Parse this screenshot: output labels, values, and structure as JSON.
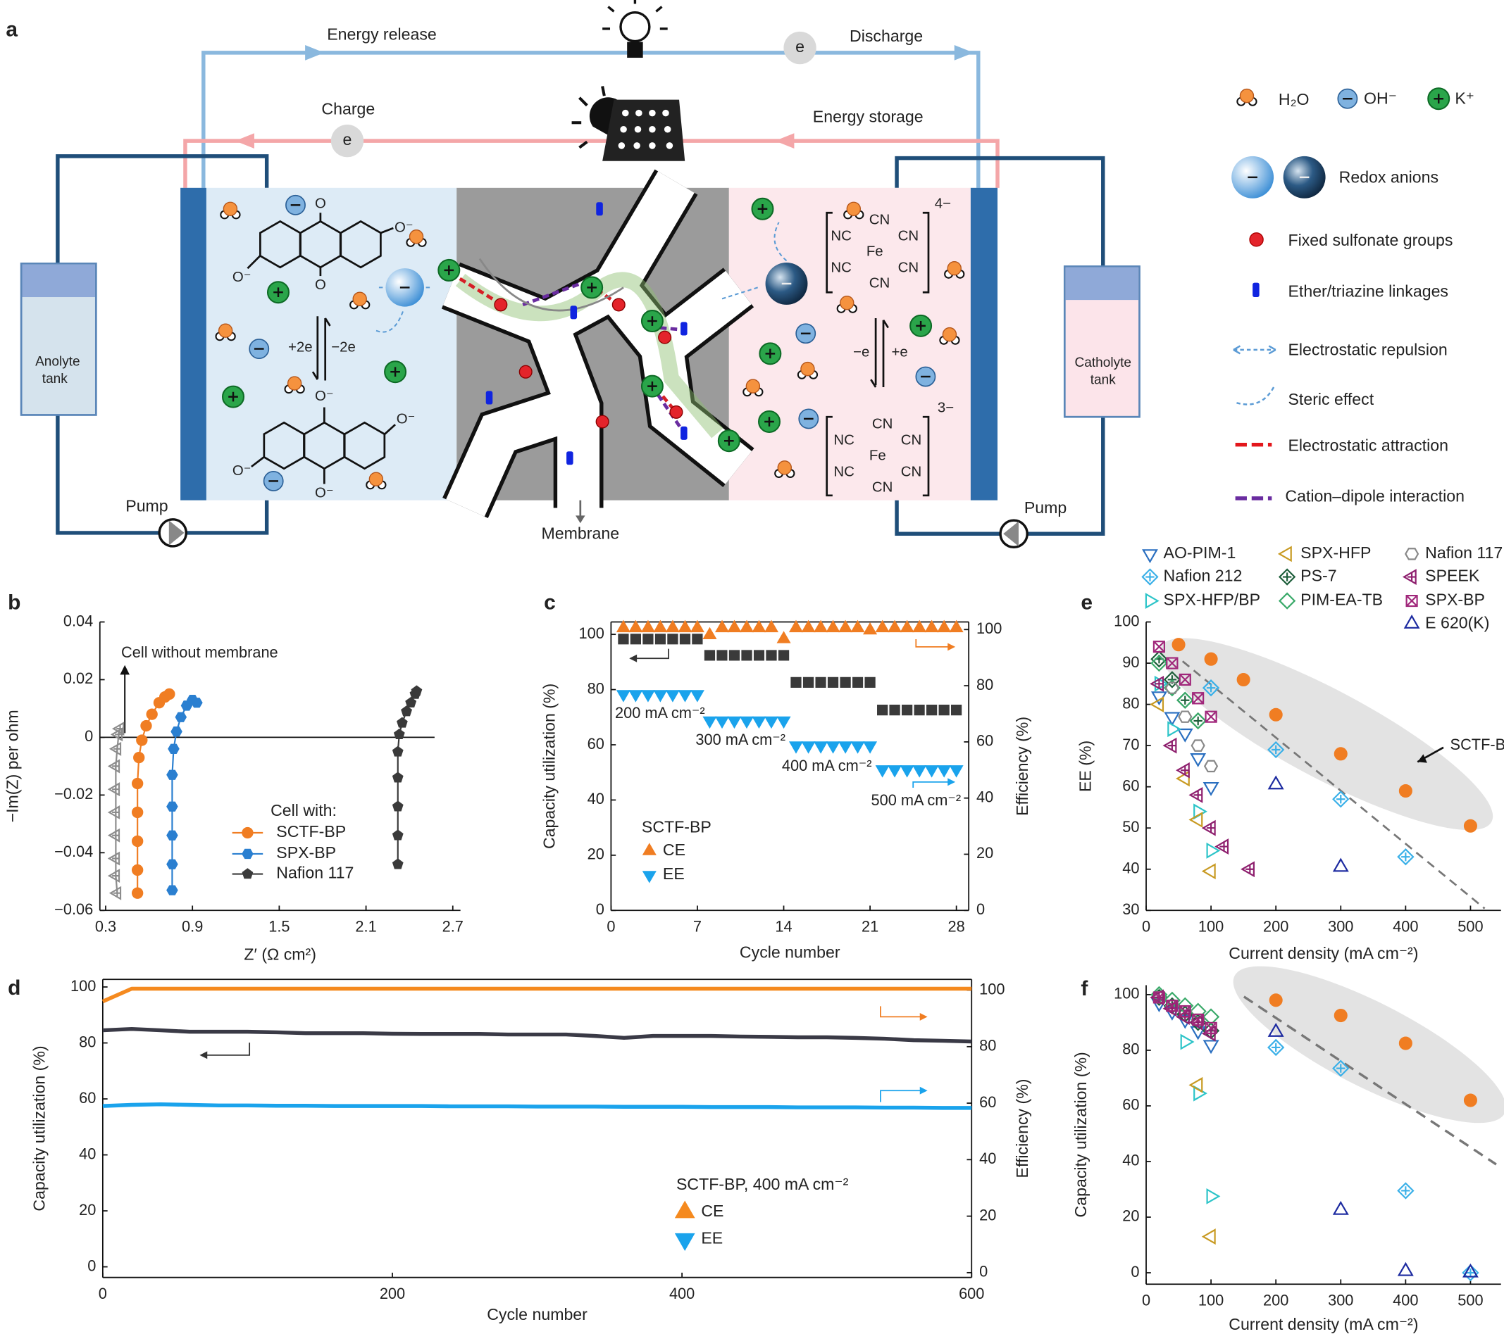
{
  "diagram": {
    "panel": "a",
    "energy_release": "Energy release",
    "discharge": "Discharge",
    "charge": "Charge",
    "energy_storage": "Energy storage",
    "electrons": [
      "e",
      "e"
    ],
    "tank_left": [
      "Anolyte",
      "tank"
    ],
    "tank_right": [
      "Catholyte",
      "tank"
    ],
    "pumps": [
      "Pump",
      "Pump"
    ],
    "membrane": "Membrane",
    "reaction_left": [
      "+2e",
      "−2e"
    ],
    "reaction_right": [
      "−e",
      "+e"
    ],
    "anthraquinone": [
      "O",
      "O⁻",
      "O⁻",
      "O"
    ],
    "reduced": [
      "O⁻",
      "O⁻",
      "O⁻",
      "O⁻"
    ],
    "complex_ox": [
      "CN",
      "NC",
      "CN",
      "Fe",
      "NC",
      "CN",
      "CN",
      "4−"
    ],
    "complex_red": [
      "CN",
      "NC",
      "CN",
      "Fe",
      "NC",
      "CN",
      "CN",
      "3−"
    ],
    "legend": [
      "H₂O",
      "OH⁻",
      "K⁺",
      "Redox anions",
      "Fixed sulfonate groups",
      "Ether/triazine linkages",
      "Electrostatic repulsion",
      "Steric effect",
      "Electrostatic attraction",
      "Cation–dipole interaction"
    ]
  },
  "chart_data": [
    {
      "panel": "b",
      "type": "line",
      "xlabel": "Z′ (Ω cm²)",
      "ylabel": "−Im(Z) per ohm",
      "xlim": [
        0.26,
        2.753
      ],
      "ylim": [
        -0.06,
        0.04
      ],
      "xticks": [
        0.3,
        0.9,
        1.5,
        2.1,
        2.7
      ],
      "yticks": [
        {
          "value": -0.06,
          "label": "−0.06"
        },
        {
          "value": -0.04,
          "label": "−0.04"
        },
        {
          "value": -0.02,
          "label": "−0.02"
        },
        0,
        0.02,
        0.04
      ],
      "legend_title": "Cell with:",
      "annotations": [
        "Cell without membrane"
      ],
      "series": [
        {
          "color": "#8c8c8c",
          "marker": "o-tri-left-plus",
          "x": [
            0.38,
            0.37,
            0.37,
            0.37,
            0.37,
            0.37,
            0.37,
            0.38,
            0.39,
            0.4
          ],
          "values": [
            -0.054,
            -0.048,
            -0.042,
            -0.034,
            -0.026,
            -0.018,
            -0.01,
            -0.004,
            0.001,
            0.003
          ]
        },
        {
          "name": "SCTF-BP",
          "color": "#f07d22",
          "marker": "circle",
          "x": [
            0.52,
            0.52,
            0.52,
            0.52,
            0.52,
            0.53,
            0.55,
            0.58,
            0.62,
            0.67,
            0.71,
            0.74
          ],
          "values": [
            -0.054,
            -0.046,
            -0.036,
            -0.026,
            -0.016,
            -0.007,
            -0.001,
            0.004,
            0.008,
            0.012,
            0.014,
            0.015
          ]
        },
        {
          "name": "SPX-BP",
          "color": "#2a7fd0",
          "marker": "hexagon",
          "x": [
            0.76,
            0.76,
            0.76,
            0.76,
            0.76,
            0.77,
            0.79,
            0.82,
            0.86,
            0.9,
            0.93
          ],
          "values": [
            -0.053,
            -0.044,
            -0.034,
            -0.024,
            -0.013,
            -0.004,
            0.002,
            0.007,
            0.011,
            0.013,
            0.012
          ]
        },
        {
          "name": "Nafion 117",
          "color": "#3a3a3a",
          "marker": "pentagon",
          "x": [
            2.32,
            2.32,
            2.32,
            2.32,
            2.32,
            2.33,
            2.35,
            2.38,
            2.41,
            2.44,
            2.45
          ],
          "values": [
            -0.044,
            -0.034,
            -0.024,
            -0.014,
            -0.005,
            0.001,
            0.005,
            0.009,
            0.012,
            0.015,
            0.016
          ]
        }
      ]
    },
    {
      "panel": "c",
      "type": "scatter",
      "xlabel": "Cycle number",
      "ylabel": "Capacity utilization (%)",
      "y2label": "Efficiency (%)",
      "xlim": [
        0,
        29
      ],
      "xticks": [
        0,
        7,
        14,
        21,
        28
      ],
      "ylim": [
        0,
        104.5
      ],
      "yticks": [
        0,
        20,
        40,
        60,
        80,
        100
      ],
      "y2lim": [
        0,
        102.7
      ],
      "y2ticks": [
        0,
        20,
        40,
        60,
        80,
        100
      ],
      "legend_title": "SCTF-BP",
      "annotations": [
        "200 mA cm⁻²",
        "300 mA cm⁻²",
        "400 mA cm⁻²",
        "500 mA cm⁻²"
      ],
      "x": [
        1,
        2,
        3,
        4,
        5,
        6,
        7,
        8,
        9,
        10,
        11,
        12,
        13,
        14,
        15,
        16,
        17,
        18,
        19,
        20,
        21,
        22,
        23,
        24,
        25,
        26,
        27,
        28
      ],
      "series": [
        {
          "color": "#3a3a3a",
          "marker": "square",
          "values": [
            98.3,
            98.3,
            98.3,
            98.3,
            98.3,
            98.3,
            98.3,
            92.4,
            92.4,
            92.4,
            92.4,
            92.4,
            92.4,
            92.4,
            82.6,
            82.6,
            82.6,
            82.6,
            82.6,
            82.6,
            82.6,
            72.6,
            72.6,
            72.6,
            72.6,
            72.6,
            72.6,
            72.6
          ]
        },
        {
          "name": "CE",
          "axis": "y2",
          "color": "#f07d22",
          "marker": "tri-up",
          "values": [
            100.5,
            100.5,
            100.5,
            100.5,
            100.5,
            100.5,
            100.5,
            98,
            100.5,
            100.5,
            100.5,
            100.5,
            100.5,
            96.6,
            100.5,
            100.5,
            100.5,
            100.5,
            100.5,
            100.5,
            99.7,
            100.5,
            100.5,
            100.5,
            100.5,
            100.5,
            100.5,
            100.5
          ]
        },
        {
          "name": "EE",
          "axis": "y2",
          "color": "#1aa3ec",
          "marker": "tri-down",
          "values": [
            77,
            77,
            77,
            77,
            77,
            77,
            77,
            67.6,
            67.6,
            67.6,
            67.6,
            67.6,
            67.6,
            67.6,
            58.7,
            58.7,
            58.7,
            58.7,
            58.7,
            58.7,
            58.7,
            50.2,
            50.2,
            50.2,
            50.2,
            50.2,
            50.2,
            50.2
          ]
        }
      ]
    },
    {
      "panel": "d",
      "type": "line",
      "xlabel": "Cycle number",
      "ylabel": "Capacity utilization (%)",
      "y2label": "Efficiency (%)",
      "xlim": [
        0,
        600
      ],
      "xticks": [
        0,
        200,
        400,
        600
      ],
      "ylim": [
        -3.8,
        102.7
      ],
      "yticks": [
        0,
        20,
        40,
        60,
        80,
        100
      ],
      "y2lim": [
        -1.7,
        103.8
      ],
      "y2ticks": [
        0,
        20,
        40,
        60,
        80,
        100
      ],
      "legend_title": "SCTF-BP,  400 mA cm⁻²",
      "x": [
        0,
        20,
        40,
        60,
        80,
        100,
        120,
        140,
        160,
        180,
        200,
        220,
        240,
        260,
        280,
        300,
        320,
        340,
        360,
        380,
        400,
        420,
        440,
        460,
        480,
        500,
        520,
        540,
        560,
        580,
        600
      ],
      "series": [
        {
          "color": "#3a3a46",
          "values": [
            84.5,
            85,
            84.5,
            84,
            84,
            84,
            83.8,
            83.5,
            83.5,
            83.5,
            83.3,
            83.2,
            83.2,
            83.2,
            83,
            83,
            83,
            82.5,
            81.8,
            82.5,
            82.5,
            82.5,
            82.3,
            82.2,
            82,
            82,
            81.8,
            81.5,
            81,
            80.8,
            80.5
          ]
        },
        {
          "name": "CE",
          "axis": "y2",
          "color": "#f58a1f",
          "legend_marker": "tri-up",
          "values": [
            96,
            100.5,
            100.5,
            100.5,
            100.5,
            100.5,
            100.5,
            100.5,
            100.5,
            100.5,
            100.5,
            100.5,
            100.5,
            100.5,
            100.5,
            100.5,
            100.5,
            100.5,
            100.5,
            100.5,
            100.5,
            100.5,
            100.5,
            100.5,
            100.5,
            100.5,
            100.5,
            100.5,
            100.5,
            100.5,
            100.5
          ]
        },
        {
          "name": "EE",
          "axis": "y2",
          "color": "#1aa3ec",
          "legend_marker": "tri-down",
          "values": [
            59,
            59.4,
            59.6,
            59.4,
            59.2,
            59.2,
            59.1,
            59.1,
            59,
            59,
            59,
            59,
            58.9,
            58.9,
            58.9,
            58.8,
            58.8,
            58.8,
            58.7,
            58.7,
            58.7,
            58.6,
            58.6,
            58.6,
            58.5,
            58.5,
            58.5,
            58.4,
            58.4,
            58.3,
            58.3
          ]
        }
      ]
    },
    {
      "panel": "e",
      "type": "scatter",
      "xlabel": "Current density (mA cm⁻²)",
      "ylabel": "EE (%)",
      "xlim": [
        0,
        547
      ],
      "xticks": [
        0,
        100,
        200,
        300,
        400,
        500
      ],
      "ylim": [
        30,
        100
      ],
      "yticks": [
        30,
        40,
        50,
        60,
        70,
        80,
        90,
        100
      ],
      "annotations": [
        "SCTF-BP"
      ],
      "series": [
        {
          "name": "AO-PIM-1",
          "color": "#2a6fc0",
          "marker": "o-tri-down",
          "x": [
            20,
            40,
            60,
            80,
            100
          ],
          "values": [
            82,
            77,
            73,
            67,
            60
          ]
        },
        {
          "name": "Nafion 212",
          "color": "#3ab0e8",
          "marker": "o-diamond-plus",
          "x": [
            100,
            200,
            300,
            400
          ],
          "values": [
            84,
            69,
            57,
            43
          ]
        },
        {
          "name": "SPX-HFP/BP",
          "color": "#2cc4c8",
          "marker": "o-tri-right",
          "x": [
            20,
            40,
            80,
            100
          ],
          "values": [
            85,
            74,
            54,
            44.5
          ]
        },
        {
          "name": "SPX-HFP",
          "color": "#c89a22",
          "marker": "o-tri-left",
          "x": [
            20,
            60,
            80,
            100
          ],
          "values": [
            80,
            62,
            52,
            39.5
          ]
        },
        {
          "name": "PS-7",
          "color": "#1d5e3a",
          "marker": "o-diamond-plus",
          "x": [
            20,
            40,
            60,
            80
          ],
          "values": [
            91,
            86,
            81,
            76
          ]
        },
        {
          "name": "PIM-EA-TB",
          "color": "#3aaa6a",
          "marker": "o-diamond",
          "x": [
            20,
            40,
            60,
            80
          ],
          "values": [
            90,
            84,
            81,
            76
          ]
        },
        {
          "name": "Nafion 117",
          "color": "#888888",
          "marker": "o-hexagon",
          "x": [
            40,
            60,
            80,
            100
          ],
          "values": [
            84,
            77,
            70,
            65
          ]
        },
        {
          "name": "SPEEK",
          "color": "#8e1f6e",
          "marker": "o-tri-left-plus",
          "x": [
            20,
            40,
            60,
            80,
            100,
            120,
            160
          ],
          "values": [
            85,
            70,
            64,
            58,
            50,
            45.5,
            40
          ]
        },
        {
          "name": "SPX-BP",
          "color": "#a0267a",
          "marker": "o-square-x",
          "x": [
            20,
            40,
            60,
            80,
            100
          ],
          "values": [
            94,
            90,
            86,
            81.5,
            77
          ]
        },
        {
          "name": "E 620(K)",
          "color": "#1c2aa0",
          "marker": "o-tri-up",
          "x": [
            200,
            300
          ],
          "values": [
            60.5,
            40.5
          ]
        },
        {
          "color": "#f07d22",
          "marker": "circle",
          "x": [
            50,
            100,
            150,
            200,
            300,
            400,
            500
          ],
          "values": [
            94.5,
            91,
            86,
            77.5,
            68,
            59,
            50.5
          ]
        }
      ]
    },
    {
      "panel": "f",
      "type": "scatter",
      "xlabel": "Current density (mA cm⁻²)",
      "ylabel": "Capacity utilization (%)",
      "xlim": [
        0,
        547
      ],
      "xticks": [
        0,
        100,
        200,
        300,
        400,
        500
      ],
      "ylim": [
        -4.1,
        103.4
      ],
      "yticks": [
        0,
        20,
        40,
        60,
        80,
        100
      ],
      "series": [
        {
          "color": "#2a6fc0",
          "marker": "o-tri-down",
          "x": [
            20,
            40,
            60,
            80,
            100
          ],
          "values": [
            97,
            94,
            91,
            87,
            82
          ]
        },
        {
          "color": "#3ab0e8",
          "marker": "o-diamond-plus",
          "x": [
            200,
            300,
            400,
            500
          ],
          "values": [
            81,
            73.5,
            29.5,
            0
          ]
        },
        {
          "color": "#2cc4c8",
          "marker": "o-tri-right",
          "x": [
            60,
            80,
            100
          ],
          "values": [
            83,
            64.5,
            27.5
          ]
        },
        {
          "color": "#c89a22",
          "marker": "o-tri-left",
          "x": [
            80,
            100
          ],
          "values": [
            67.5,
            13
          ]
        },
        {
          "color": "#1d5e3a",
          "marker": "o-diamond-plus",
          "x": [
            20,
            40,
            60,
            80,
            100
          ],
          "values": [
            99,
            96,
            93,
            90,
            87
          ]
        },
        {
          "color": "#3aaa6a",
          "marker": "o-diamond",
          "x": [
            20,
            40,
            60,
            80,
            100
          ],
          "values": [
            100,
            98,
            96,
            94,
            92
          ]
        },
        {
          "color": "#888888",
          "marker": "o-hexagon",
          "x": [
            20,
            40,
            60,
            80
          ],
          "values": [
            99,
            96,
            94,
            91
          ]
        },
        {
          "color": "#8e1f6e",
          "marker": "o-tri-left-plus",
          "x": [
            20,
            40,
            60,
            80,
            100
          ],
          "values": [
            99,
            95,
            92,
            90,
            86
          ]
        },
        {
          "color": "#a0267a",
          "marker": "o-square-x",
          "x": [
            20,
            40,
            60,
            80,
            100
          ],
          "values": [
            99,
            96,
            94,
            91,
            88
          ]
        },
        {
          "color": "#1c2aa0",
          "marker": "o-tri-up",
          "x": [
            200,
            300,
            400,
            500
          ],
          "values": [
            86.5,
            22.5,
            0.5,
            0
          ]
        },
        {
          "color": "#f07d22",
          "marker": "circle",
          "x": [
            200,
            300,
            400,
            500
          ],
          "values": [
            98,
            92.5,
            82.5,
            62
          ]
        }
      ]
    }
  ]
}
